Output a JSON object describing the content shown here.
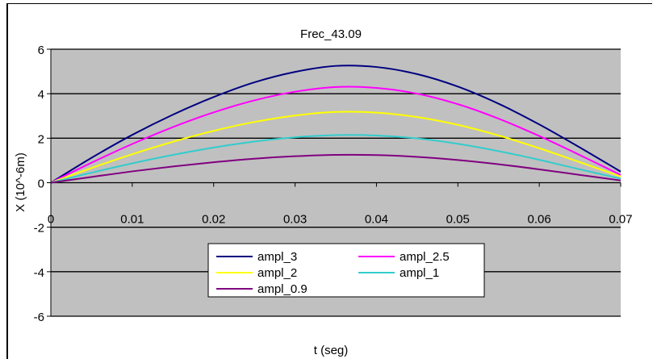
{
  "chart_data": {
    "type": "line",
    "title": "Frec_43.09",
    "xlabel": "t (seg)",
    "ylabel": "X (10^-6m)",
    "xlim": [
      0,
      0.07
    ],
    "ylim": [
      -6,
      6
    ],
    "x_ticks": [
      "0",
      "0.01",
      "0.02",
      "0.03",
      "0.04",
      "0.05",
      "0.06",
      "0.07"
    ],
    "y_ticks": [
      "-6",
      "-4",
      "-2",
      "0",
      "2",
      "4",
      "6"
    ],
    "x_tick_values": [
      0,
      0.01,
      0.02,
      0.03,
      0.04,
      0.05,
      0.06,
      0.07
    ],
    "y_tick_values": [
      -6,
      -4,
      -2,
      0,
      2,
      4,
      6
    ],
    "grid": "horizontal",
    "legend_position": "bottom-center",
    "x": [
      0,
      0.005,
      0.01,
      0.015,
      0.02,
      0.025,
      0.03,
      0.035,
      0.04,
      0.045,
      0.05,
      0.055,
      0.06,
      0.065,
      0.07
    ],
    "series": [
      {
        "name": "ampl_3",
        "color": "#000080",
        "values": [
          0,
          1.12,
          2.15,
          3.06,
          3.85,
          4.51,
          4.98,
          5.25,
          5.2,
          4.88,
          4.32,
          3.55,
          2.62,
          1.58,
          0.5
        ]
      },
      {
        "name": "ampl_2.5",
        "color": "#ff00ff",
        "values": [
          0,
          0.9,
          1.74,
          2.5,
          3.16,
          3.7,
          4.09,
          4.3,
          4.26,
          4.0,
          3.53,
          2.88,
          2.1,
          1.24,
          0.35
        ]
      },
      {
        "name": "ampl_2",
        "color": "#ffff00",
        "values": [
          0,
          0.66,
          1.28,
          1.84,
          2.33,
          2.73,
          3.02,
          3.18,
          3.15,
          2.95,
          2.6,
          2.12,
          1.55,
          0.92,
          0.28
        ]
      },
      {
        "name": "ampl_1",
        "color": "#33cccc",
        "values": [
          0,
          0.45,
          0.87,
          1.25,
          1.58,
          1.85,
          2.04,
          2.14,
          2.12,
          1.99,
          1.75,
          1.42,
          1.03,
          0.6,
          0.18
        ]
      },
      {
        "name": "ampl_0.9",
        "color": "#800080",
        "values": [
          0,
          0.26,
          0.51,
          0.73,
          0.92,
          1.08,
          1.19,
          1.25,
          1.24,
          1.16,
          1.02,
          0.83,
          0.6,
          0.35,
          0.1
        ]
      }
    ],
    "plot_background": "#c0c0c0"
  }
}
